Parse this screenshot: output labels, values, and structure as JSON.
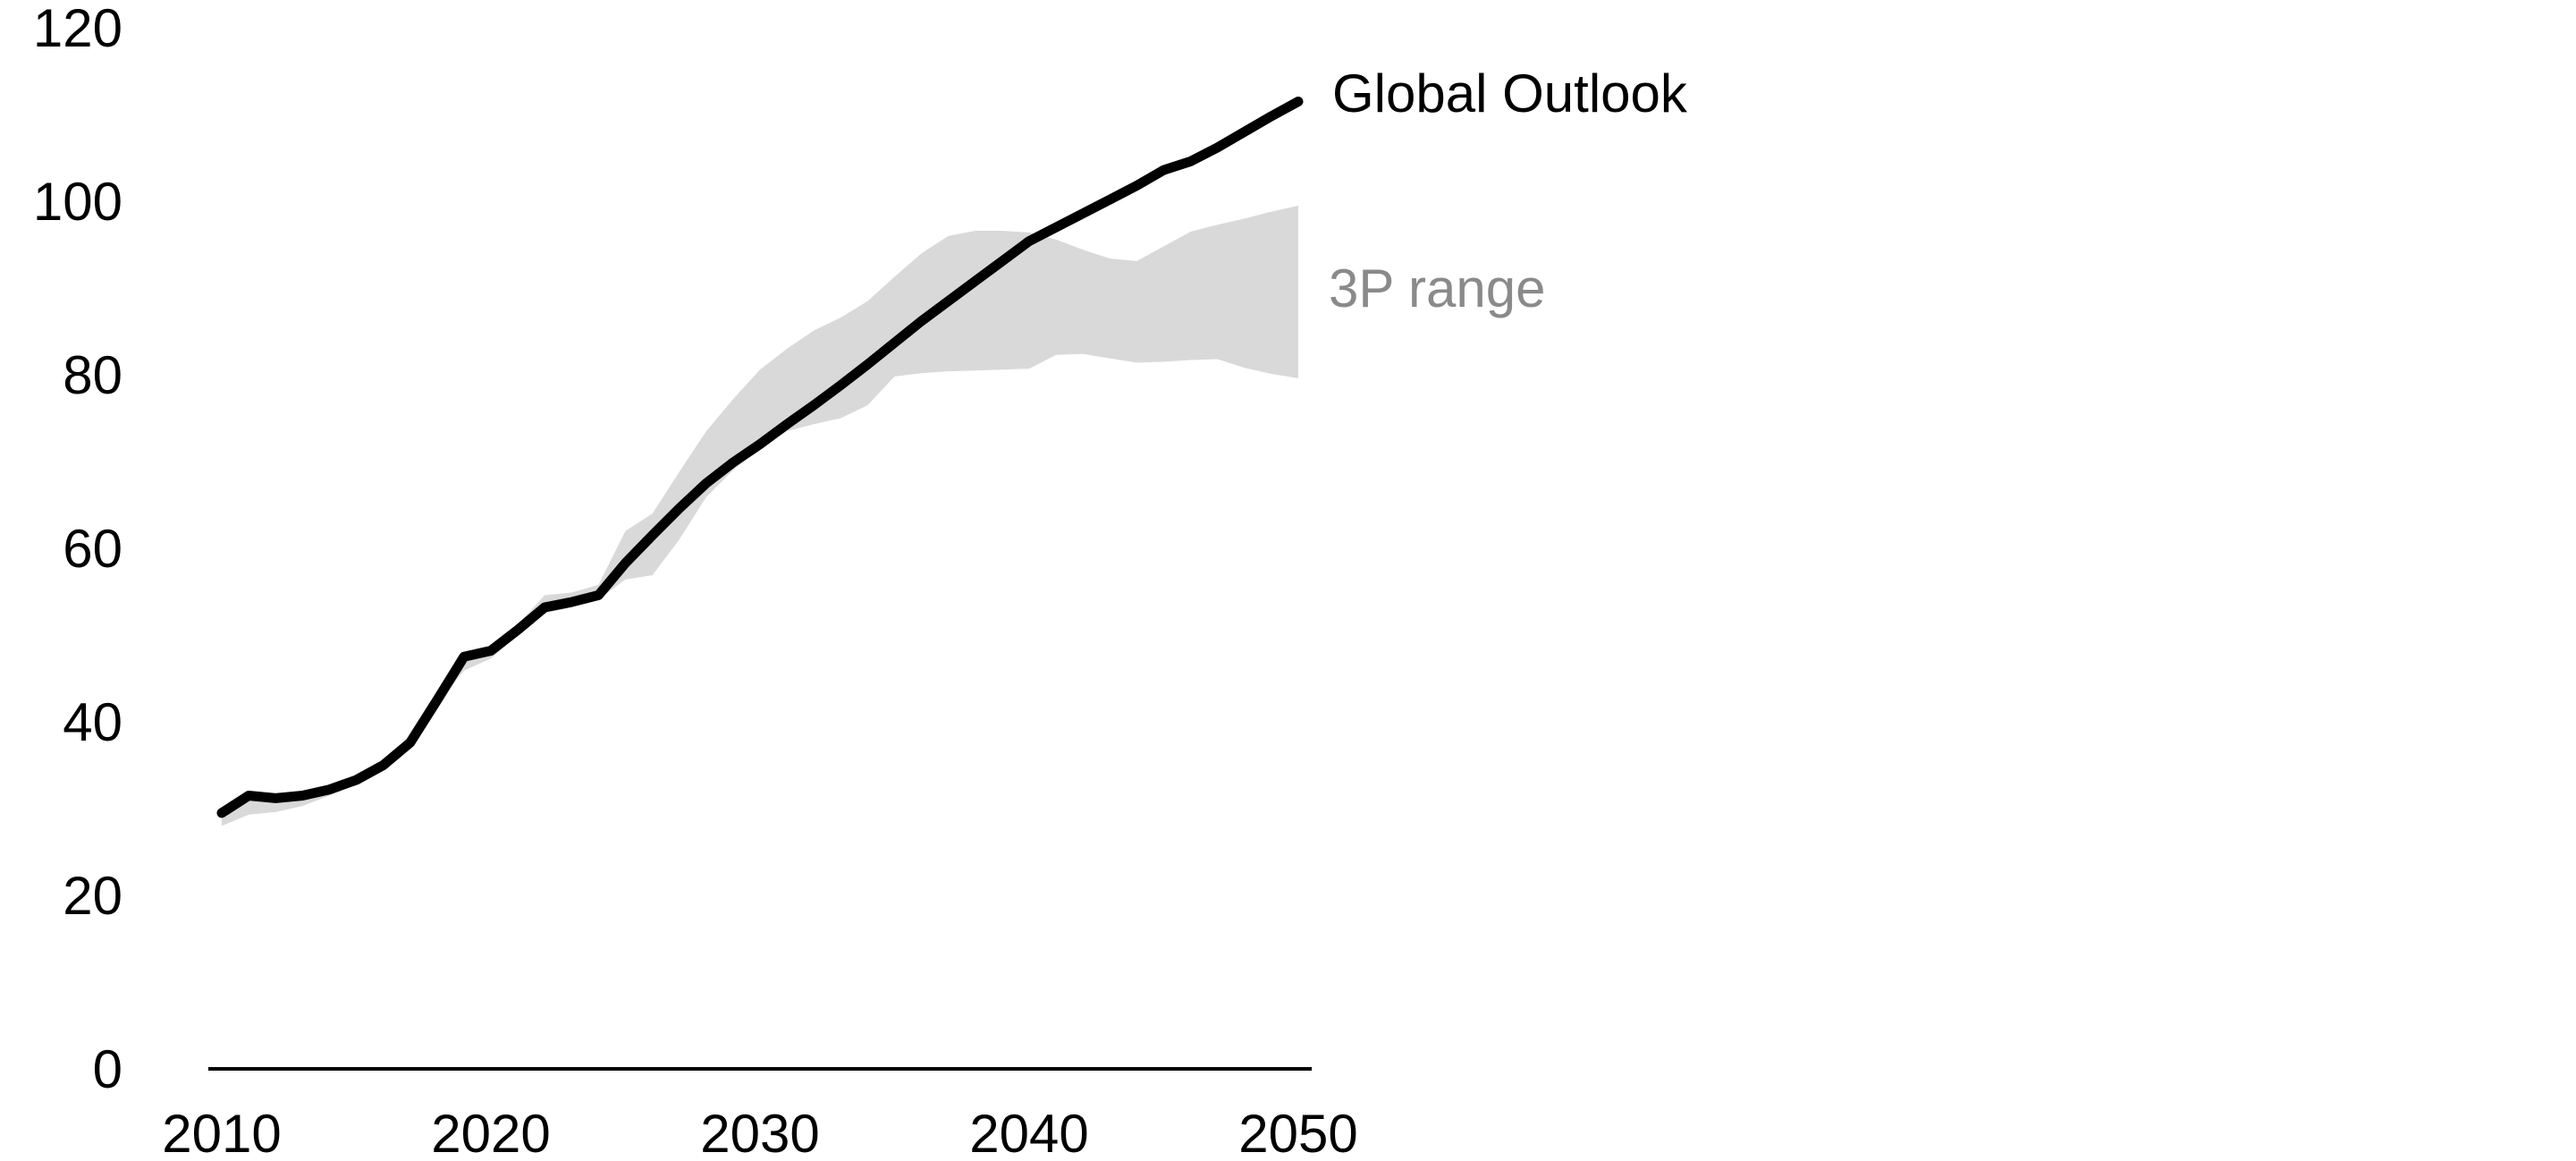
{
  "chart_data": {
    "type": "line",
    "title": "",
    "xlabel": "",
    "ylabel": "",
    "grid": false,
    "background": "#ffffff",
    "ylim": [
      0,
      120
    ],
    "xlim": [
      2009.5,
      2050.5
    ],
    "yticks": [
      0,
      20,
      40,
      60,
      80,
      100,
      120
    ],
    "xticks": [
      2010,
      2020,
      2030,
      2040,
      2050
    ],
    "tick_label_color": "#000000",
    "axis_line_color": "#000000",
    "x_years": [
      2010,
      2011,
      2012,
      2013,
      2014,
      2015,
      2016,
      2017,
      2018,
      2019,
      2020,
      2021,
      2022,
      2023,
      2024,
      2025,
      2026,
      2027,
      2028,
      2029,
      2030,
      2031,
      2032,
      2033,
      2034,
      2035,
      2036,
      2037,
      2038,
      2039,
      2040,
      2041,
      2042,
      2043,
      2044,
      2045,
      2046,
      2047,
      2048,
      2049,
      2050
    ],
    "series": [
      {
        "name": "Global Outlook",
        "kind": "line",
        "color": "#000000",
        "values": [
          29.5,
          31.5,
          31.2,
          31.5,
          32.2,
          33.3,
          35.0,
          37.6,
          42.5,
          47.5,
          48.2,
          50.6,
          53.2,
          53.8,
          54.6,
          58.3,
          61.5,
          64.6,
          67.5,
          69.9,
          72.0,
          74.3,
          76.5,
          78.8,
          81.2,
          83.7,
          86.2,
          88.5,
          90.8,
          93.1,
          95.4,
          97.0,
          98.6,
          100.2,
          101.8,
          103.6,
          104.6,
          106.2,
          108.0,
          109.8,
          111.5
        ]
      },
      {
        "name": "3P range",
        "kind": "band",
        "color": "#d9d9d9",
        "upper": [
          29.8,
          31.7,
          31.6,
          31.9,
          32.6,
          33.8,
          35.4,
          38.1,
          43.0,
          47.9,
          48.7,
          51.2,
          54.6,
          54.9,
          55.8,
          62.0,
          64.0,
          68.8,
          73.5,
          77.2,
          80.6,
          83.0,
          85.1,
          86.6,
          88.5,
          91.3,
          94.0,
          96.0,
          96.6,
          96.6,
          96.4,
          95.6,
          94.4,
          93.4,
          93.1,
          94.8,
          96.5,
          97.3,
          98.0,
          98.8,
          99.5
        ],
        "lower": [
          28.0,
          29.3,
          29.6,
          30.3,
          31.5,
          32.9,
          34.6,
          37.2,
          42.0,
          45.9,
          47.3,
          50.0,
          52.5,
          53.2,
          54.1,
          56.4,
          56.9,
          61.0,
          65.9,
          69.0,
          71.6,
          73.5,
          74.3,
          75.0,
          76.5,
          79.8,
          80.2,
          80.4,
          80.5,
          80.6,
          80.7,
          82.3,
          82.4,
          81.9,
          81.4,
          81.5,
          81.7,
          81.8,
          80.8,
          80.1,
          79.6
        ]
      }
    ],
    "annotations": [
      {
        "text": "Global Outlook",
        "color": "#000000"
      },
      {
        "text": "3P range",
        "color": "#8a8a8a"
      }
    ],
    "legend_position": "right-of-plot-annotations"
  }
}
